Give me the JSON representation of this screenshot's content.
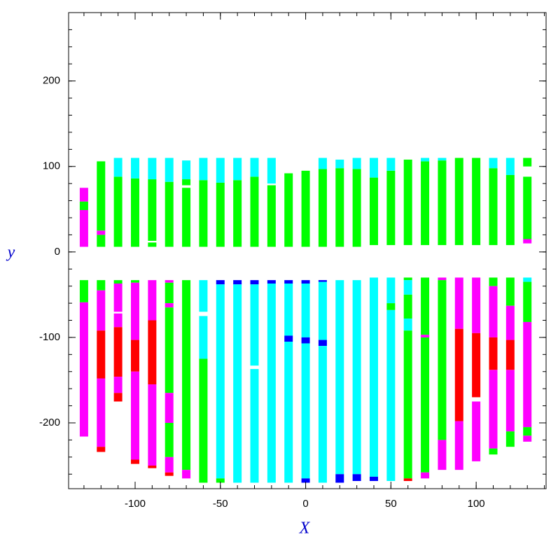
{
  "chart_data": {
    "type": "segments",
    "x_label": "X",
    "y_label": "y",
    "xlim": [
      -139,
      141
    ],
    "ylim": [
      -277,
      280
    ],
    "xticks": [
      -100,
      -50,
      0,
      50,
      100
    ],
    "yticks": [
      -200,
      -100,
      0,
      100,
      200
    ],
    "columns": [
      {
        "x": -130,
        "segments": [
          [
            6,
            49,
            "#ff00ff"
          ],
          [
            49,
            59,
            "#00ff00"
          ],
          [
            59,
            75,
            "#ff00ff"
          ],
          [
            -59,
            -33,
            "#00ff00"
          ],
          [
            -216,
            -59,
            "#ff00ff"
          ]
        ]
      },
      {
        "x": -120,
        "segments": [
          [
            6,
            20,
            "#00ff00"
          ],
          [
            20,
            25,
            "#ff00ff"
          ],
          [
            25,
            106,
            "#00ff00"
          ],
          [
            -45,
            -33,
            "#00ff00"
          ],
          [
            -92,
            -45,
            "#ff00ff"
          ],
          [
            -148,
            -92,
            "#ff0000"
          ],
          [
            -228,
            -148,
            "#ff00ff"
          ],
          [
            -234,
            -228,
            "#ff0000"
          ]
        ]
      },
      {
        "x": -110,
        "segments": [
          [
            6,
            88,
            "#00ff00"
          ],
          [
            88,
            110,
            "#00ffff"
          ],
          [
            -37,
            -33,
            "#00ff00"
          ],
          [
            -70,
            -37,
            "#ff00ff"
          ],
          [
            -88,
            -72,
            "#ff00ff"
          ],
          [
            -146,
            -88,
            "#ff0000"
          ],
          [
            -165,
            -146,
            "#ff00ff"
          ],
          [
            -175,
            -165,
            "#ff0000"
          ]
        ]
      },
      {
        "x": -100,
        "segments": [
          [
            6,
            86,
            "#00ff00"
          ],
          [
            86,
            110,
            "#00ffff"
          ],
          [
            -36,
            -33,
            "#00ff00"
          ],
          [
            -103,
            -36,
            "#ff00ff"
          ],
          [
            -140,
            -103,
            "#ff0000"
          ],
          [
            -243,
            -140,
            "#ff00ff"
          ],
          [
            -248,
            -243,
            "#ff0000"
          ]
        ]
      },
      {
        "x": -90,
        "segments": [
          [
            6,
            11,
            "#00ff00"
          ],
          [
            13,
            85,
            "#00ff00"
          ],
          [
            85,
            110,
            "#00ffff"
          ],
          [
            -80,
            -33,
            "#ff00ff"
          ],
          [
            -155,
            -80,
            "#ff0000"
          ],
          [
            -250,
            -155,
            "#ff00ff"
          ],
          [
            -253,
            -250,
            "#ff0000"
          ]
        ]
      },
      {
        "x": -80,
        "segments": [
          [
            6,
            82,
            "#00ff00"
          ],
          [
            82,
            110,
            "#00ffff"
          ],
          [
            -36,
            -33,
            "#ff00ff"
          ],
          [
            -60,
            -36,
            "#00ff00"
          ],
          [
            -65,
            -60,
            "#ff00ff"
          ],
          [
            -165,
            -65,
            "#00ff00"
          ],
          [
            -200,
            -165,
            "#ff00ff"
          ],
          [
            -240,
            -200,
            "#00ff00"
          ],
          [
            -258,
            -240,
            "#ff00ff"
          ],
          [
            -262,
            -258,
            "#ff0000"
          ]
        ]
      },
      {
        "x": -70,
        "segments": [
          [
            6,
            75,
            "#00ff00"
          ],
          [
            78,
            85,
            "#00ff00"
          ],
          [
            85,
            107,
            "#00ffff"
          ],
          [
            -255,
            -33,
            "#00ff00"
          ],
          [
            -265,
            -255,
            "#ff00ff"
          ]
        ]
      },
      {
        "x": -60,
        "segments": [
          [
            6,
            84,
            "#00ff00"
          ],
          [
            84,
            110,
            "#00ffff"
          ],
          [
            -70,
            -33,
            "#00ffff"
          ],
          [
            -125,
            -75,
            "#00ffff"
          ],
          [
            -270,
            -125,
            "#00ff00"
          ]
        ]
      },
      {
        "x": -50,
        "segments": [
          [
            6,
            81,
            "#00ff00"
          ],
          [
            81,
            110,
            "#00ffff"
          ],
          [
            -38,
            -33,
            "#0000ff"
          ],
          [
            -265,
            -38,
            "#00ffff"
          ],
          [
            -270,
            -265,
            "#00ff00"
          ]
        ]
      },
      {
        "x": -40,
        "segments": [
          [
            6,
            84,
            "#00ff00"
          ],
          [
            84,
            110,
            "#00ffff"
          ],
          [
            -38,
            -33,
            "#0000ff"
          ],
          [
            -270,
            -38,
            "#00ffff"
          ]
        ]
      },
      {
        "x": -30,
        "segments": [
          [
            6,
            88,
            "#00ff00"
          ],
          [
            88,
            110,
            "#00ffff"
          ],
          [
            -38,
            -33,
            "#0000ff"
          ],
          [
            -133,
            -38,
            "#00ffff"
          ],
          [
            -270,
            -137,
            "#00ffff"
          ]
        ]
      },
      {
        "x": -20,
        "segments": [
          [
            6,
            78,
            "#00ff00"
          ],
          [
            80,
            110,
            "#00ffff"
          ],
          [
            -37,
            -33,
            "#0000ff"
          ],
          [
            -270,
            -37,
            "#00ffff"
          ]
        ]
      },
      {
        "x": -10,
        "segments": [
          [
            6,
            92,
            "#00ff00"
          ],
          [
            -37,
            -33,
            "#0000ff"
          ],
          [
            -98,
            -37,
            "#00ffff"
          ],
          [
            -105,
            -98,
            "#0000ff"
          ],
          [
            -270,
            -105,
            "#00ffff"
          ]
        ]
      },
      {
        "x": 0,
        "segments": [
          [
            6,
            95,
            "#00ff00"
          ],
          [
            -37,
            -33,
            "#0000ff"
          ],
          [
            -100,
            -37,
            "#00ffff"
          ],
          [
            -107,
            -100,
            "#0000ff"
          ],
          [
            -265,
            -107,
            "#00ffff"
          ],
          [
            -270,
            -265,
            "#0000ff"
          ]
        ]
      },
      {
        "x": 10,
        "segments": [
          [
            6,
            97,
            "#00ff00"
          ],
          [
            97,
            110,
            "#00ffff"
          ],
          [
            -35,
            -33,
            "#0000ff"
          ],
          [
            -103,
            -35,
            "#00ffff"
          ],
          [
            -110,
            -103,
            "#0000ff"
          ],
          [
            -270,
            -110,
            "#00ffff"
          ]
        ]
      },
      {
        "x": 20,
        "segments": [
          [
            6,
            98,
            "#00ff00"
          ],
          [
            98,
            108,
            "#00ffff"
          ],
          [
            -260,
            -33,
            "#00ffff"
          ],
          [
            -270,
            -260,
            "#0000ff"
          ]
        ]
      },
      {
        "x": 30,
        "segments": [
          [
            6,
            97,
            "#00ff00"
          ],
          [
            97,
            110,
            "#00ffff"
          ],
          [
            -260,
            -33,
            "#00ffff"
          ],
          [
            -268,
            -260,
            "#0000ff"
          ]
        ]
      },
      {
        "x": 40,
        "segments": [
          [
            8,
            87,
            "#00ff00"
          ],
          [
            87,
            110,
            "#00ffff"
          ],
          [
            -263,
            -30,
            "#00ffff"
          ],
          [
            -268,
            -263,
            "#0000ff"
          ]
        ]
      },
      {
        "x": 50,
        "segments": [
          [
            8,
            95,
            "#00ff00"
          ],
          [
            95,
            110,
            "#00ffff"
          ],
          [
            -60,
            -30,
            "#00ffff"
          ],
          [
            -68,
            -60,
            "#00ff00"
          ],
          [
            -268,
            -68,
            "#00ffff"
          ]
        ]
      },
      {
        "x": 60,
        "segments": [
          [
            8,
            108,
            "#00ff00"
          ],
          [
            -33,
            -30,
            "#00ff00"
          ],
          [
            -50,
            -33,
            "#00ffff"
          ],
          [
            -78,
            -50,
            "#00ff00"
          ],
          [
            -92,
            -78,
            "#00ffff"
          ],
          [
            -265,
            -92,
            "#00ff00"
          ],
          [
            -268,
            -265,
            "#ff0000"
          ]
        ]
      },
      {
        "x": 70,
        "segments": [
          [
            8,
            106,
            "#00ff00"
          ],
          [
            106,
            110,
            "#00ffff"
          ],
          [
            -97,
            -30,
            "#00ff00"
          ],
          [
            -100,
            -97,
            "#ff00ff"
          ],
          [
            -258,
            -100,
            "#00ff00"
          ],
          [
            -265,
            -258,
            "#ff00ff"
          ]
        ]
      },
      {
        "x": 80,
        "segments": [
          [
            8,
            107,
            "#00ff00"
          ],
          [
            107,
            110,
            "#00ffff"
          ],
          [
            -33,
            -30,
            "#ff00ff"
          ],
          [
            -220,
            -33,
            "#00ff00"
          ],
          [
            -255,
            -220,
            "#ff00ff"
          ]
        ]
      },
      {
        "x": 90,
        "segments": [
          [
            8,
            110,
            "#00ff00"
          ],
          [
            -90,
            -30,
            "#ff00ff"
          ],
          [
            -198,
            -90,
            "#ff0000"
          ],
          [
            -255,
            -198,
            "#ff00ff"
          ]
        ]
      },
      {
        "x": 100,
        "segments": [
          [
            8,
            110,
            "#00ff00"
          ],
          [
            -95,
            -30,
            "#ff00ff"
          ],
          [
            -170,
            -95,
            "#ff0000"
          ],
          [
            -245,
            -175,
            "#ff00ff"
          ]
        ]
      },
      {
        "x": 110,
        "segments": [
          [
            8,
            98,
            "#00ff00"
          ],
          [
            98,
            110,
            "#00ffff"
          ],
          [
            -40,
            -30,
            "#00ff00"
          ],
          [
            -100,
            -40,
            "#ff00ff"
          ],
          [
            -138,
            -100,
            "#ff0000"
          ],
          [
            -230,
            -138,
            "#ff00ff"
          ],
          [
            -237,
            -230,
            "#00ff00"
          ]
        ]
      },
      {
        "x": 120,
        "segments": [
          [
            8,
            90,
            "#00ff00"
          ],
          [
            90,
            110,
            "#00ffff"
          ],
          [
            -63,
            -30,
            "#00ff00"
          ],
          [
            -103,
            -63,
            "#ff00ff"
          ],
          [
            -138,
            -103,
            "#ff0000"
          ],
          [
            -210,
            -138,
            "#ff00ff"
          ],
          [
            -228,
            -210,
            "#00ff00"
          ]
        ]
      },
      {
        "x": 130,
        "segments": [
          [
            10,
            15,
            "#ff00ff"
          ],
          [
            15,
            88,
            "#00ff00"
          ],
          [
            100,
            110,
            "#00ff00"
          ],
          [
            -35,
            -30,
            "#00ffff"
          ],
          [
            -82,
            -35,
            "#00ff00"
          ],
          [
            -205,
            -82,
            "#ff00ff"
          ],
          [
            -215,
            -205,
            "#00ff00"
          ],
          [
            -222,
            -215,
            "#ff00ff"
          ]
        ]
      }
    ]
  }
}
